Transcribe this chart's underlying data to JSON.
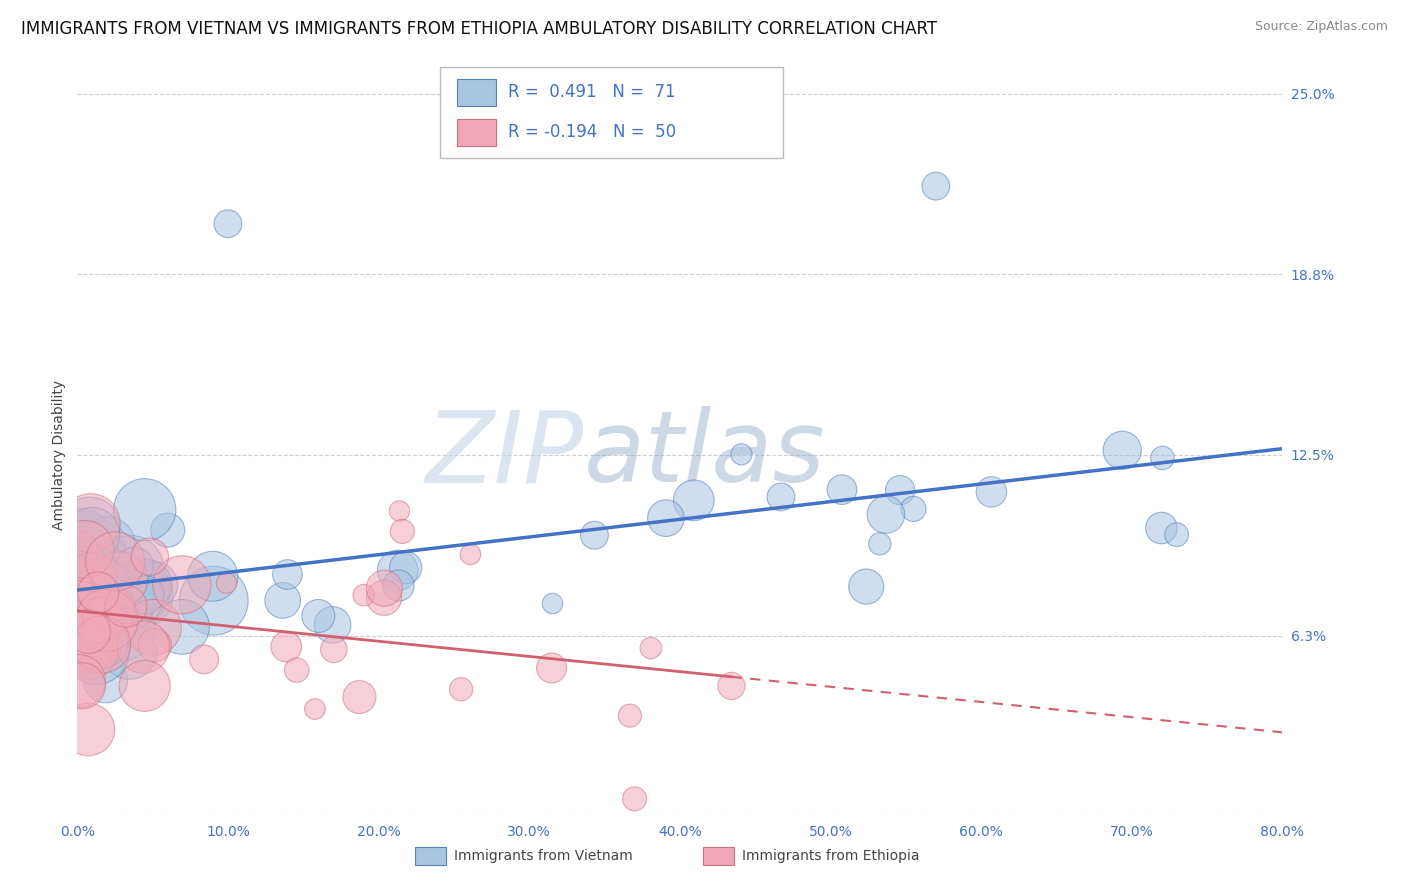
{
  "title": "IMMIGRANTS FROM VIETNAM VS IMMIGRANTS FROM ETHIOPIA AMBULATORY DISABILITY CORRELATION CHART",
  "source": "Source: ZipAtlas.com",
  "ylabel": "Ambulatory Disability",
  "legend_labels": [
    "Immigrants from Vietnam",
    "Immigrants from Ethiopia"
  ],
  "series1": {
    "name": "Immigrants from Vietnam",
    "R": 0.491,
    "N": 71,
    "color": "#a8c4e0",
    "edge_color": "#5580b8",
    "line_color": "#4472c4"
  },
  "series2": {
    "name": "Immigrants from Ethiopia",
    "R": -0.194,
    "N": 50,
    "color": "#f0a8b8",
    "edge_color": "#cc7080",
    "line_color": "#d06070"
  },
  "xlim": [
    0.0,
    80.0
  ],
  "ylim": [
    0.0,
    25.0
  ],
  "ytick_vals": [
    0.0,
    6.25,
    12.5,
    18.75,
    25.0
  ],
  "ytick_labels": [
    "",
    "6.3%",
    "12.5%",
    "18.8%",
    "25.0%"
  ],
  "xtick_vals": [
    0,
    10,
    20,
    30,
    40,
    50,
    60,
    70,
    80
  ],
  "xtick_labels": [
    "0.0%",
    "10.0%",
    "20.0%",
    "30.0%",
    "40.0%",
    "50.0%",
    "60.0%",
    "70.0%",
    "80.0%"
  ],
  "watermark_zip": "ZIP",
  "watermark_atlas": "atlas",
  "grid_color": "#c8c8c8",
  "background_color": "#ffffff",
  "title_fontsize": 12,
  "axis_color": "#4472c4",
  "ylabel_color": "#444444"
}
